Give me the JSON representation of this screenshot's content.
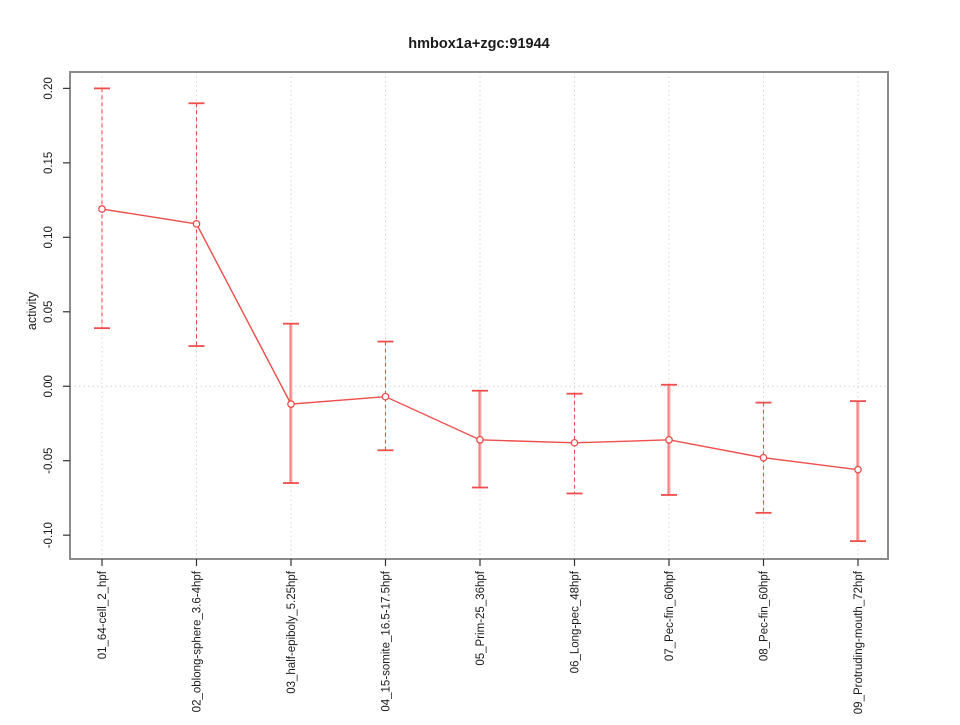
{
  "chart_data": {
    "type": "line",
    "title": "hmbox1a+zgc:91944",
    "xlabel": "",
    "ylabel": "activity",
    "ylim": [
      -0.116,
      0.211
    ],
    "yticks": [
      -0.1,
      -0.05,
      0.0,
      0.05,
      0.1,
      0.15,
      0.2
    ],
    "ytick_labels": [
      "-0.10",
      "-0.05",
      "0.00",
      "0.05",
      "0.10",
      "0.15",
      "0.20"
    ],
    "categories": [
      "01_64-cell_2_hpf",
      "02_oblong-sphere_3.6-4hpf",
      "03_half-epiboly_5.25hpf",
      "04_15-somite_16.5-17.5hpf",
      "05_Prim-25_36hpf",
      "06_Long-pec_48hpf",
      "07_Pec-fin_60hpf",
      "08_Pec-fin_60hpf",
      "09_Protruding-mouth_72hpf"
    ],
    "series": [
      {
        "name": "activity",
        "values": [
          0.119,
          0.109,
          -0.012,
          -0.007,
          -0.036,
          -0.038,
          -0.036,
          -0.048,
          -0.056
        ],
        "err_high": [
          0.2,
          0.19,
          0.042,
          0.03,
          -0.003,
          -0.005,
          0.001,
          -0.011,
          -0.01
        ],
        "err_low": [
          0.039,
          0.027,
          -0.065,
          -0.043,
          -0.068,
          -0.072,
          -0.073,
          -0.085,
          -0.104
        ],
        "error_bar_styles": [
          "dashed",
          "dashed",
          "solid",
          "dashed",
          "solid",
          "dashed",
          "solid",
          "dashed",
          "solid"
        ]
      }
    ],
    "grid": {
      "vertical": "dotted at each category",
      "horizontal_at_zero": true
    },
    "legend": "none",
    "colors": {
      "line": "#ef4e4c",
      "marker": "#e84d4b",
      "error_bar_solid": "#f8a3a3",
      "error_bar_dashed": "#ef4e4c",
      "grid": "#d4d4d4",
      "box_border": "#8c8c8c",
      "tick": "#333333",
      "text": "#1a1a1a",
      "background": "#ffffff"
    }
  }
}
